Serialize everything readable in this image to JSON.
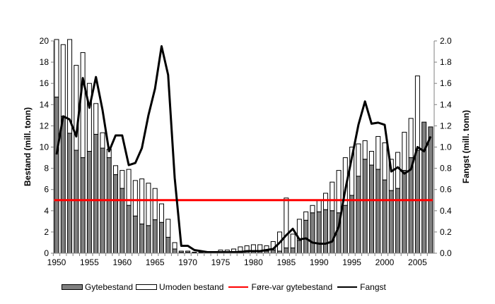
{
  "chart_data": {
    "type": "bar",
    "title": "",
    "xlabel": "",
    "ylabel": "Bestand (mill. tonn)",
    "y2label": "Fangst (mill. tonn)",
    "ylim": [
      0,
      20
    ],
    "y2lim": [
      0,
      2.0
    ],
    "yticks": [
      "0",
      "2",
      "4",
      "6",
      "8",
      "10",
      "12",
      "14",
      "16",
      "18",
      "20"
    ],
    "y2ticks": [
      "0.0",
      "0.2",
      "0.4",
      "0.6",
      "0.8",
      "1.0",
      "1.2",
      "1.4",
      "1.6",
      "1.8",
      "2.0"
    ],
    "xticks": [
      "1950",
      "1955",
      "1960",
      "1965",
      "1970",
      "1975",
      "1980",
      "1985",
      "1990",
      "1995",
      "2000",
      "2005"
    ],
    "grid": false,
    "legend": "bottom",
    "years": [
      1950,
      1951,
      1952,
      1953,
      1954,
      1955,
      1956,
      1957,
      1958,
      1959,
      1960,
      1961,
      1962,
      1963,
      1964,
      1965,
      1966,
      1967,
      1968,
      1969,
      1970,
      1971,
      1972,
      1973,
      1974,
      1975,
      1976,
      1977,
      1978,
      1979,
      1980,
      1981,
      1982,
      1983,
      1984,
      1985,
      1986,
      1987,
      1988,
      1989,
      1990,
      1991,
      1992,
      1993,
      1994,
      1995,
      1996,
      1997,
      1998,
      1999,
      2000,
      2001,
      2002,
      2003,
      2004,
      2005,
      2006,
      2007
    ],
    "series": [
      {
        "name": "Gytebestand",
        "kind": "bar",
        "axis": "left",
        "color": "#808080",
        "values": [
          14.7,
          12.9,
          11.3,
          9.7,
          9.0,
          9.6,
          11.2,
          9.9,
          9.0,
          7.4,
          6.1,
          4.5,
          3.5,
          2.75,
          2.6,
          3.15,
          2.9,
          1.5,
          0.4,
          0.1,
          0.1,
          0.05,
          0.05,
          0.05,
          0.05,
          0.1,
          0.1,
          0.15,
          0.2,
          0.2,
          0.2,
          0.2,
          0.2,
          0.3,
          0.2,
          0.5,
          0.5,
          1.2,
          3.1,
          3.8,
          3.9,
          4.1,
          4.0,
          3.8,
          4.5,
          5.45,
          7.25,
          8.85,
          8.3,
          7.9,
          6.9,
          5.9,
          6.1,
          7.8,
          9.0,
          9.7,
          12.35,
          11.9
        ]
      },
      {
        "name": "Umoden bestand",
        "kind": "bar",
        "axis": "left",
        "color": "#ffffff",
        "values": [
          7.3,
          6.75,
          10.7,
          8.0,
          9.9,
          6.4,
          2.9,
          1.45,
          0.8,
          0.85,
          1.7,
          3.4,
          3.35,
          4.25,
          4.0,
          2.95,
          1.75,
          1.7,
          0.6,
          0.1,
          0.1,
          0.05,
          0.05,
          0.05,
          0.1,
          0.2,
          0.2,
          0.25,
          0.4,
          0.5,
          0.6,
          0.6,
          0.5,
          0.8,
          1.8,
          4.7,
          1.3,
          2.0,
          0.8,
          0.7,
          1.1,
          1.55,
          2.7,
          4.0,
          4.5,
          4.55,
          3.05,
          1.75,
          1.3,
          3.1,
          3.5,
          2.95,
          3.4,
          3.6,
          3.7,
          7.0,
          0,
          0
        ]
      },
      {
        "name": "Føre-var gytebestand",
        "kind": "hline",
        "axis": "left",
        "color": "#ff0000",
        "value": 5.0
      },
      {
        "name": "Fangst",
        "kind": "line",
        "axis": "right",
        "color": "#000000",
        "values": [
          0.93,
          1.29,
          1.26,
          1.1,
          1.65,
          1.37,
          1.66,
          1.35,
          0.96,
          1.11,
          1.11,
          0.83,
          0.85,
          0.99,
          1.3,
          1.55,
          1.95,
          1.68,
          0.71,
          0.07,
          0.07,
          0.03,
          0.02,
          0.01,
          0.01,
          0.01,
          0.01,
          0.01,
          0.01,
          0.02,
          0.02,
          0.02,
          0.03,
          0.04,
          0.1,
          0.17,
          0.23,
          0.13,
          0.14,
          0.1,
          0.09,
          0.09,
          0.11,
          0.25,
          0.6,
          0.9,
          1.21,
          1.43,
          1.22,
          1.23,
          1.21,
          0.77,
          0.81,
          0.75,
          0.79,
          1.0,
          0.96,
          1.1
        ]
      }
    ]
  }
}
